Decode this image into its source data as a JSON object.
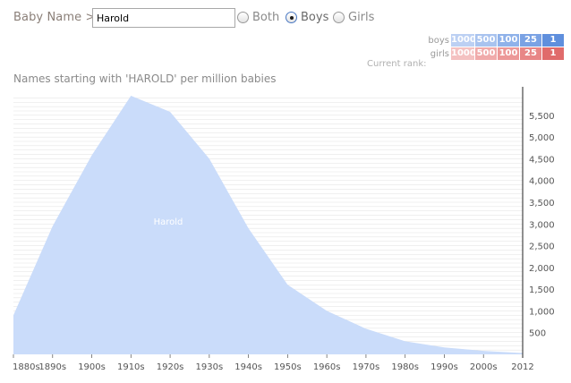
{
  "controls": {
    "label": "Baby Name >",
    "input_value": "Harold",
    "options": [
      {
        "label": "Both",
        "selected": false
      },
      {
        "label": "Boys",
        "selected": true
      },
      {
        "label": "Girls",
        "selected": false
      }
    ]
  },
  "rank_legend": {
    "title": "Current rank:",
    "rows": [
      {
        "gender": "boys",
        "colors": [
          "#bcd0f3",
          "#a8c3ef",
          "#8fb2ea",
          "#7aa2e4",
          "#5f8fdd"
        ]
      },
      {
        "gender": "girls",
        "colors": [
          "#f4c1c1",
          "#f0aaaa",
          "#ec9898",
          "#e88686",
          "#e06b6b"
        ]
      }
    ],
    "thresholds": [
      "1000",
      "500",
      "100",
      "25",
      "1"
    ]
  },
  "subtitle": "Names starting with 'HAROLD' per million babies",
  "chart_data": {
    "type": "area",
    "series": [
      {
        "name": "Harold",
        "color": "#cadcfa",
        "x": [
          "1880s",
          "1890s",
          "1900s",
          "1910s",
          "1920s",
          "1930s",
          "1940s",
          "1950s",
          "1960s",
          "1970s",
          "1980s",
          "1990s",
          "2000s",
          "2012"
        ],
        "values": [
          900,
          2950,
          4580,
          5950,
          5580,
          4500,
          2900,
          1600,
          1000,
          590,
          300,
          160,
          80,
          30
        ]
      }
    ],
    "x_ticks": [
      "1880s",
      "1890s",
      "1900s",
      "1910s",
      "1920s",
      "1930s",
      "1940s",
      "1950s",
      "1960s",
      "1970s",
      "1980s",
      "1990s",
      "2000s",
      "2012"
    ],
    "y_ticks": [
      "500",
      "1,000",
      "1,500",
      "2,000",
      "2,500",
      "3,000",
      "3,500",
      "4,000",
      "4,500",
      "5,000",
      "5,500"
    ],
    "y_tick_values": [
      500,
      1000,
      1500,
      2000,
      2500,
      3000,
      3500,
      4000,
      4500,
      5000,
      5500
    ],
    "ylim": [
      0,
      5950
    ],
    "grid": true,
    "line_color": "#e6e6e6"
  }
}
